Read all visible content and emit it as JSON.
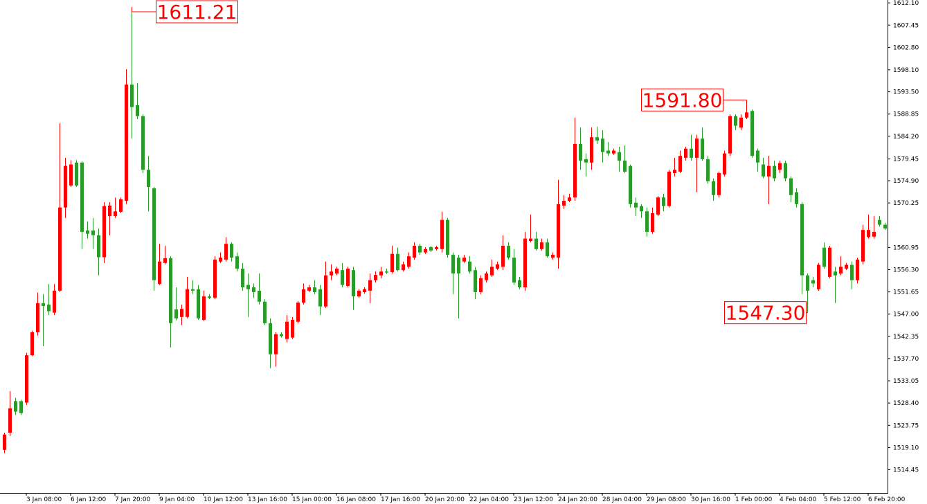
{
  "chart_data": {
    "type": "candlestick",
    "up_color": "#ff0000",
    "down_color": "#2a9a2a",
    "ylim": [
      1509.6,
      1612.7
    ],
    "yticks": [
      {
        "value": 1612.1,
        "label": "1612.10"
      },
      {
        "value": 1607.45,
        "label": "1607.45"
      },
      {
        "value": 1602.8,
        "label": "1602.80"
      },
      {
        "value": 1598.1,
        "label": "1598.10"
      },
      {
        "value": 1593.5,
        "label": "1593.50"
      },
      {
        "value": 1588.85,
        "label": "1588.85"
      },
      {
        "value": 1584.2,
        "label": "1584.20"
      },
      {
        "value": 1579.45,
        "label": "1579.45"
      },
      {
        "value": 1574.9,
        "label": "1574.90"
      },
      {
        "value": 1570.25,
        "label": "1570.25"
      },
      {
        "value": 1560.95,
        "label": "1560.95"
      },
      {
        "value": 1556.3,
        "label": "1556.30"
      },
      {
        "value": 1551.65,
        "label": "1551.65"
      },
      {
        "value": 1547,
        "label": "1547.00"
      },
      {
        "value": 1542.35,
        "label": "1542.35"
      },
      {
        "value": 1537.7,
        "label": "1537.70"
      },
      {
        "value": 1533.05,
        "label": "1533.05"
      },
      {
        "value": 1528.4,
        "label": "1528.40"
      },
      {
        "value": 1523.75,
        "label": "1523.75"
      },
      {
        "value": 1519.1,
        "label": "1519.10"
      },
      {
        "value": 1514.45,
        "label": "1514.45"
      }
    ],
    "annotations": [
      1611.21,
      {
        "value": 1591.8,
        "label": "1591.80"
      },
      {
        "value": 1547.3,
        "label": "1547.30"
      }
    ],
    "categories": [
      null,
      null,
      null,
      null,
      "3 Jan 08:00",
      null,
      null,
      null,
      null,
      null,
      null,
      null,
      "6 Jan 12:00",
      null,
      null,
      null,
      null,
      null,
      null,
      null,
      "7 Jan 20:00",
      null,
      null,
      null,
      null,
      null,
      null,
      null,
      "9 Jan 04:00",
      null,
      null,
      null,
      null,
      null,
      null,
      null,
      "10 Jan 12:00",
      null,
      null,
      null,
      null,
      null,
      null,
      null,
      "13 Jan 16:00",
      null,
      null,
      null,
      null,
      null,
      null,
      null,
      "15 Jan 00:00",
      null,
      null,
      null,
      null,
      null,
      null,
      null,
      "16 Jan 08:00",
      null,
      null,
      null,
      null,
      null,
      null,
      null,
      "17 Jan 16:00",
      null,
      null,
      null,
      null,
      null,
      null,
      null,
      "20 Jan 20:00",
      null,
      null,
      null,
      null,
      null,
      null,
      null,
      "22 Jan 04:00",
      null,
      null,
      null,
      null,
      null,
      null,
      null,
      "23 Jan 12:00",
      null,
      null,
      null,
      null,
      null,
      null,
      null,
      "24 Jan 20:00",
      null,
      null,
      null,
      null,
      null,
      null,
      null,
      "28 Jan 04:00",
      null,
      null,
      null,
      null,
      null,
      null,
      null,
      "29 Jan 08:00",
      null,
      null,
      null,
      null,
      null,
      null,
      null,
      "30 Jan 16:00",
      null,
      null,
      null,
      null,
      null,
      null,
      null,
      "1 Feb 00:00",
      null,
      null,
      null,
      null,
      null,
      null,
      null,
      "4 Feb 04:00",
      null,
      null,
      null,
      null,
      null,
      null,
      null,
      "5 Feb 12:00",
      null,
      null,
      null,
      null,
      null,
      null,
      null,
      "6 Feb 20:00",
      null,
      null,
      null
    ],
    "ohlc": [
      [
        1518.6,
        1522.2,
        1517.9,
        1521.8
      ],
      [
        1522.2,
        1530.9,
        1521.5,
        1527.3
      ],
      [
        1528.8,
        1529.5,
        1525.9,
        1526.6
      ],
      [
        1528.8,
        1529.1,
        1525.9,
        1526.3
      ],
      [
        1528.5,
        1538.9,
        1528.0,
        1538.4
      ],
      [
        1538.4,
        1543.5,
        1538.2,
        1543.2
      ],
      [
        1543.2,
        1551.5,
        1542.5,
        1549.3
      ],
      [
        1549.3,
        1551.2,
        1540.3,
        1548.7
      ],
      [
        1549.0,
        1553.3,
        1546.8,
        1547.6
      ],
      [
        1547.3,
        1553.3,
        1546.8,
        1551.9
      ],
      [
        1551.9,
        1586.9,
        1551.6,
        1569.3
      ],
      [
        1569.3,
        1579.7,
        1567.1,
        1578.0
      ],
      [
        1573.9,
        1579.2,
        1573.6,
        1578.3
      ],
      [
        1578.7,
        1579.2,
        1573.6,
        1573.9
      ],
      [
        1578.7,
        1579.0,
        1560.6,
        1564.2
      ],
      [
        1564.5,
        1566.4,
        1562.8,
        1563.8
      ],
      [
        1564.5,
        1567.1,
        1560.6,
        1563.5
      ],
      [
        1563.5,
        1564.9,
        1555.1,
        1558.9
      ],
      [
        1558.9,
        1570.4,
        1557.7,
        1569.6
      ],
      [
        1567.5,
        1570.4,
        1563.5,
        1569.7
      ],
      [
        1567.5,
        1571.4,
        1567.1,
        1568.5
      ],
      [
        1568.4,
        1571.4,
        1568.1,
        1571.0
      ],
      [
        1570.7,
        1598.2,
        1570.0,
        1595.0
      ],
      [
        1595.0,
        1611.21,
        1583.7,
        1590.3
      ],
      [
        1590.7,
        1595.3,
        1587.8,
        1588.4
      ],
      [
        1588.4,
        1588.8,
        1576.5,
        1577.2
      ],
      [
        1577.2,
        1580.1,
        1568.5,
        1573.6
      ],
      [
        1573.3,
        1573.6,
        1551.9,
        1554.1
      ],
      [
        1553.3,
        1561.7,
        1553.1,
        1558.0
      ],
      [
        1557.7,
        1561.3,
        1557.4,
        1558.7
      ],
      [
        1558.7,
        1559.1,
        1540.0,
        1545.1
      ],
      [
        1548.0,
        1552.6,
        1545.7,
        1546.1
      ],
      [
        1546.4,
        1549.0,
        1544.7,
        1548.1
      ],
      [
        1546.4,
        1554.8,
        1546.1,
        1552.2
      ],
      [
        1552.2,
        1554.1,
        1551.2,
        1551.9
      ],
      [
        1552.2,
        1553.1,
        1545.8,
        1546.1
      ],
      [
        1545.8,
        1551.9,
        1545.5,
        1550.7
      ],
      [
        1550.7,
        1551.2,
        1550.1,
        1550.4
      ],
      [
        1550.4,
        1559.1,
        1550.1,
        1558.4
      ],
      [
        1558.0,
        1559.9,
        1557.7,
        1558.8
      ],
      [
        1558.4,
        1563.1,
        1558.0,
        1561.7
      ],
      [
        1561.7,
        1562.0,
        1558.0,
        1558.8
      ],
      [
        1559.1,
        1559.9,
        1555.9,
        1556.5
      ],
      [
        1556.5,
        1557.7,
        1551.9,
        1552.6
      ],
      [
        1553.1,
        1555.5,
        1546.4,
        1552.2
      ],
      [
        1552.6,
        1553.4,
        1550.4,
        1551.6
      ],
      [
        1551.9,
        1555.5,
        1549.0,
        1549.6
      ],
      [
        1549.6,
        1550.1,
        1544.7,
        1545.1
      ],
      [
        1545.1,
        1546.1,
        1535.7,
        1538.6
      ],
      [
        1538.6,
        1543.2,
        1536.0,
        1542.8
      ],
      [
        1542.8,
        1543.2,
        1542.1,
        1542.4
      ],
      [
        1541.8,
        1546.8,
        1541.1,
        1545.4
      ],
      [
        1542.1,
        1546.4,
        1541.8,
        1545.8
      ],
      [
        1545.4,
        1549.7,
        1545.1,
        1549.4
      ],
      [
        1549.4,
        1553.4,
        1549.0,
        1552.2
      ],
      [
        1551.9,
        1553.1,
        1551.6,
        1552.6
      ],
      [
        1552.6,
        1554.1,
        1551.2,
        1551.6
      ],
      [
        1552.2,
        1553.1,
        1546.8,
        1548.6
      ],
      [
        1548.6,
        1558.0,
        1548.3,
        1555.1
      ],
      [
        1555.1,
        1557.4,
        1554.1,
        1555.9
      ],
      [
        1555.5,
        1556.9,
        1555.1,
        1556.5
      ],
      [
        1556.2,
        1557.7,
        1552.6,
        1553.1
      ],
      [
        1552.9,
        1556.9,
        1552.6,
        1556.5
      ],
      [
        1556.2,
        1556.9,
        1547.9,
        1550.7
      ],
      [
        1550.7,
        1552.2,
        1550.4,
        1551.9
      ],
      [
        1551.6,
        1552.6,
        1551.3,
        1552.2
      ],
      [
        1551.9,
        1555.5,
        1549.3,
        1554.1
      ],
      [
        1554.1,
        1555.9,
        1553.6,
        1555.2
      ],
      [
        1555.1,
        1556.9,
        1554.5,
        1555.9
      ],
      [
        1555.9,
        1556.5,
        1555.4,
        1555.7
      ],
      [
        1555.8,
        1561.3,
        1555.5,
        1559.6
      ],
      [
        1559.6,
        1560.9,
        1555.9,
        1556.2
      ],
      [
        1556.2,
        1558.0,
        1555.9,
        1557.4
      ],
      [
        1556.9,
        1559.9,
        1556.5,
        1559.1
      ],
      [
        1558.8,
        1562.0,
        1558.4,
        1561.3
      ],
      [
        1561.3,
        1561.7,
        1559.4,
        1559.9
      ],
      [
        1559.9,
        1561.0,
        1559.6,
        1560.6
      ],
      [
        1561.0,
        1561.3,
        1560.0,
        1560.3
      ],
      [
        1560.6,
        1561.3,
        1560.3,
        1561.0
      ],
      [
        1560.6,
        1568.4,
        1559.9,
        1566.7
      ],
      [
        1566.7,
        1567.1,
        1558.8,
        1559.4
      ],
      [
        1559.4,
        1559.9,
        1551.2,
        1555.5
      ],
      [
        1558.8,
        1559.4,
        1546.1,
        1555.5
      ],
      [
        1558.0,
        1559.4,
        1557.7,
        1558.8
      ],
      [
        1558.0,
        1559.1,
        1555.5,
        1555.9
      ],
      [
        1556.2,
        1556.9,
        1550.1,
        1551.6
      ],
      [
        1551.6,
        1555.1,
        1551.2,
        1554.5
      ],
      [
        1554.1,
        1555.9,
        1553.6,
        1555.5
      ],
      [
        1555.1,
        1558.4,
        1554.8,
        1556.9
      ],
      [
        1556.5,
        1558.0,
        1556.2,
        1557.4
      ],
      [
        1556.9,
        1563.5,
        1556.2,
        1561.3
      ],
      [
        1561.3,
        1562.0,
        1558.4,
        1558.8
      ],
      [
        1558.8,
        1560.6,
        1553.1,
        1553.6
      ],
      [
        1554.1,
        1554.8,
        1552.2,
        1552.6
      ],
      [
        1552.6,
        1564.2,
        1551.9,
        1562.8
      ],
      [
        1562.3,
        1567.8,
        1562.0,
        1562.8
      ],
      [
        1562.8,
        1564.2,
        1560.3,
        1560.6
      ],
      [
        1560.6,
        1562.8,
        1560.3,
        1562.0
      ],
      [
        1562.0,
        1562.8,
        1558.8,
        1559.1
      ],
      [
        1558.8,
        1559.9,
        1558.4,
        1559.4
      ],
      [
        1558.8,
        1575.1,
        1556.5,
        1570.0
      ],
      [
        1569.7,
        1571.9,
        1569.0,
        1570.7
      ],
      [
        1570.7,
        1572.2,
        1570.4,
        1571.4
      ],
      [
        1571.4,
        1588.1,
        1570.7,
        1582.6
      ],
      [
        1582.6,
        1586.0,
        1577.2,
        1579.1
      ],
      [
        1579.4,
        1580.6,
        1575.8,
        1578.7
      ],
      [
        1578.7,
        1586.0,
        1577.2,
        1584.0
      ],
      [
        1584.0,
        1586.2,
        1582.6,
        1583.3
      ],
      [
        1583.7,
        1585.5,
        1578.7,
        1580.9
      ],
      [
        1581.2,
        1583.0,
        1580.1,
        1580.6
      ],
      [
        1580.6,
        1581.6,
        1580.3,
        1581.2
      ],
      [
        1580.9,
        1582.0,
        1576.8,
        1579.1
      ],
      [
        1579.1,
        1582.3,
        1576.5,
        1576.8
      ],
      [
        1578.0,
        1578.3,
        1569.3,
        1570.0
      ],
      [
        1570.3,
        1571.4,
        1567.5,
        1569.3
      ],
      [
        1569.6,
        1570.0,
        1567.1,
        1568.5
      ],
      [
        1568.5,
        1569.3,
        1563.2,
        1564.2
      ],
      [
        1564.2,
        1569.3,
        1563.8,
        1568.1
      ],
      [
        1567.8,
        1571.7,
        1567.5,
        1571.4
      ],
      [
        1571.4,
        1572.2,
        1568.5,
        1569.6
      ],
      [
        1569.6,
        1577.2,
        1569.3,
        1576.8
      ],
      [
        1576.5,
        1579.7,
        1575.8,
        1577.2
      ],
      [
        1576.8,
        1581.2,
        1576.5,
        1580.1
      ],
      [
        1579.7,
        1582.0,
        1579.1,
        1581.6
      ],
      [
        1581.6,
        1584.5,
        1579.1,
        1579.7
      ],
      [
        1579.7,
        1584.5,
        1572.5,
        1583.7
      ],
      [
        1583.7,
        1586.0,
        1579.1,
        1579.4
      ],
      [
        1579.4,
        1580.1,
        1574.3,
        1574.8
      ],
      [
        1574.8,
        1575.4,
        1570.7,
        1571.9
      ],
      [
        1571.9,
        1576.8,
        1571.4,
        1576.5
      ],
      [
        1576.2,
        1581.2,
        1575.8,
        1580.6
      ],
      [
        1580.6,
        1588.8,
        1580.1,
        1588.4
      ],
      [
        1588.4,
        1588.8,
        1585.5,
        1586.4
      ],
      [
        1586.0,
        1588.8,
        1585.5,
        1588.1
      ],
      [
        1588.1,
        1591.8,
        1587.8,
        1589.2
      ],
      [
        1589.5,
        1589.8,
        1579.7,
        1580.1
      ],
      [
        1581.2,
        1581.6,
        1576.8,
        1578.7
      ],
      [
        1578.3,
        1579.7,
        1575.4,
        1575.8
      ],
      [
        1575.8,
        1580.1,
        1570.0,
        1578.0
      ],
      [
        1578.0,
        1579.1,
        1574.8,
        1575.4
      ],
      [
        1577.2,
        1579.1,
        1576.5,
        1578.6
      ],
      [
        1578.6,
        1579.1,
        1574.8,
        1575.4
      ],
      [
        1575.4,
        1575.8,
        1570.4,
        1571.9
      ],
      [
        1572.5,
        1573.3,
        1569.3,
        1570.0
      ],
      [
        1570.0,
        1570.4,
        1551.2,
        1555.1
      ],
      [
        1555.1,
        1555.5,
        1547.3,
        1551.9
      ],
      [
        1554.1,
        1554.8,
        1552.6,
        1553.4
      ],
      [
        1552.2,
        1557.7,
        1551.9,
        1557.3
      ],
      [
        1560.9,
        1562.0,
        1556.5,
        1556.9
      ],
      [
        1554.8,
        1561.3,
        1554.5,
        1560.9
      ],
      [
        1555.9,
        1556.9,
        1549.3,
        1555.1
      ],
      [
        1555.5,
        1559.1,
        1555.1,
        1556.9
      ],
      [
        1556.5,
        1557.7,
        1556.2,
        1557.3
      ],
      [
        1557.3,
        1558.0,
        1552.2,
        1554.1
      ],
      [
        1554.1,
        1558.8,
        1553.4,
        1558.4
      ],
      [
        1558.0,
        1565.7,
        1557.4,
        1564.6
      ],
      [
        1563.1,
        1567.8,
        1562.8,
        1564.6
      ],
      [
        1563.2,
        1567.5,
        1562.8,
        1564.2
      ],
      [
        1566.7,
        1567.5,
        1565.3,
        1565.7
      ],
      [
        1565.7,
        1566.1,
        1564.6,
        1564.9
      ]
    ]
  }
}
